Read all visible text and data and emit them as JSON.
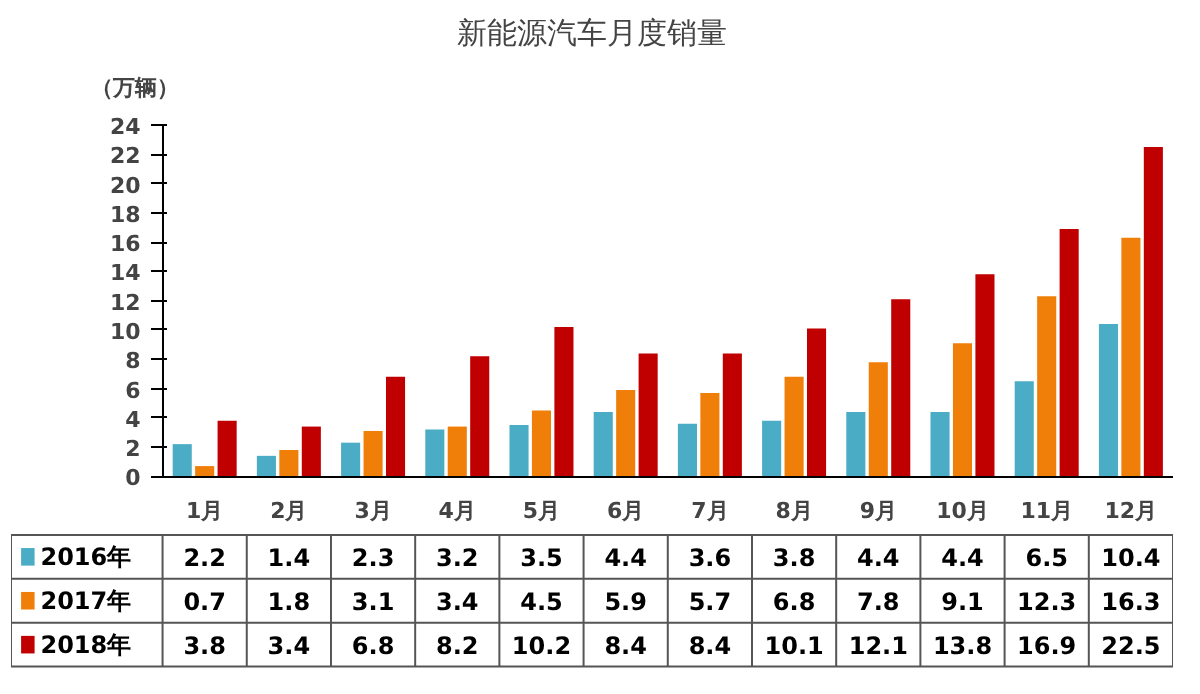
{
  "chart_data": {
    "type": "bar",
    "title": "新能源汽车月度销量",
    "ylabel": "（万辆）",
    "categories": [
      "1月",
      "2月",
      "3月",
      "4月",
      "5月",
      "6月",
      "7月",
      "8月",
      "9月",
      "10月",
      "11月",
      "12月"
    ],
    "series": [
      {
        "name": "2016年",
        "color": "#4bacc6",
        "values": [
          2.2,
          1.4,
          2.3,
          3.2,
          3.5,
          4.4,
          3.6,
          3.8,
          4.4,
          4.4,
          6.5,
          10.4
        ]
      },
      {
        "name": "2017年",
        "color": "#f07f09",
        "values": [
          0.7,
          1.8,
          3.1,
          3.4,
          4.5,
          5.9,
          5.7,
          6.8,
          7.8,
          9.1,
          12.3,
          16.3
        ]
      },
      {
        "name": "2018年",
        "color": "#c00000",
        "values": [
          3.8,
          3.4,
          6.8,
          8.2,
          10.2,
          8.4,
          8.4,
          10.1,
          12.1,
          13.8,
          16.9,
          22.5
        ]
      }
    ],
    "ylim": [
      0,
      24
    ],
    "yticks": [
      0,
      2,
      4,
      6,
      8,
      10,
      12,
      14,
      16,
      18,
      20,
      22,
      24
    ],
    "data_labels": true,
    "legend": "bottom"
  }
}
